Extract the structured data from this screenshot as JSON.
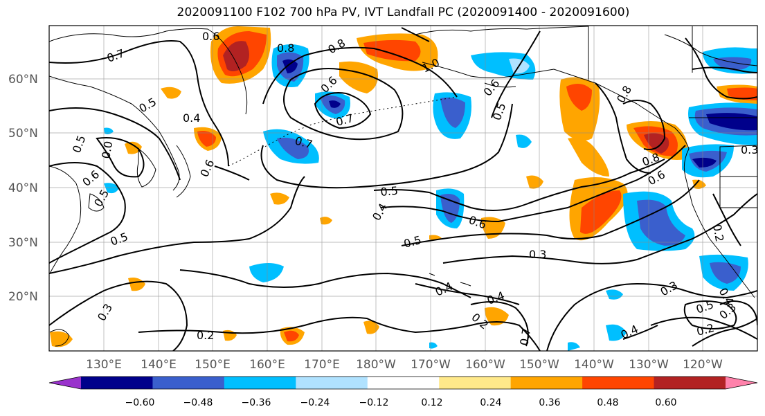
{
  "title": "2020091100 F102 700 hPa PV, IVT Landfall PC (2020091400 - 2020091600)",
  "lat_labels": [
    "60°N",
    "50°N",
    "40°N",
    "30°N",
    "20°N"
  ],
  "lon_labels": [
    "130°E",
    "140°E",
    "150°E",
    "160°E",
    "170°E",
    "180°W",
    "170°W",
    "160°W",
    "150°W",
    "140°W",
    "130°W",
    "120°W"
  ],
  "colorbar": {
    "tick_labels": [
      "−0.60",
      "−0.48",
      "−0.36",
      "−0.24",
      "−0.12",
      "0.12",
      "0.24",
      "0.36",
      "0.48",
      "0.60"
    ],
    "colors": [
      "#9932cc",
      "#00008b",
      "#3a5fcd",
      "#00bfff",
      "#b0e2ff",
      "#ffffff",
      "#ffe98a",
      "#ffa500",
      "#ff4500",
      "#b22222",
      "#ff82ab"
    ]
  },
  "contour_labels": [
    "0.6",
    "0.8",
    "0.7",
    "0.6",
    "0.8",
    "1.0",
    "0.6",
    "0.5",
    "0.8",
    "0.5",
    "0.4",
    "0.6",
    "0.7",
    "0.7",
    "0.5",
    "0.0",
    "0.5",
    "0.6",
    "0.8",
    "0.6",
    "0.3",
    "0.5",
    "0.4",
    "0.5",
    "0.6",
    "0.5",
    "0.3",
    "0.4",
    "0.4",
    "0.2",
    "0.7",
    "0.3",
    "0.5",
    "0.4",
    "0.3",
    "0.2",
    "0.4",
    "0.3",
    "0.2",
    "0.2"
  ]
}
